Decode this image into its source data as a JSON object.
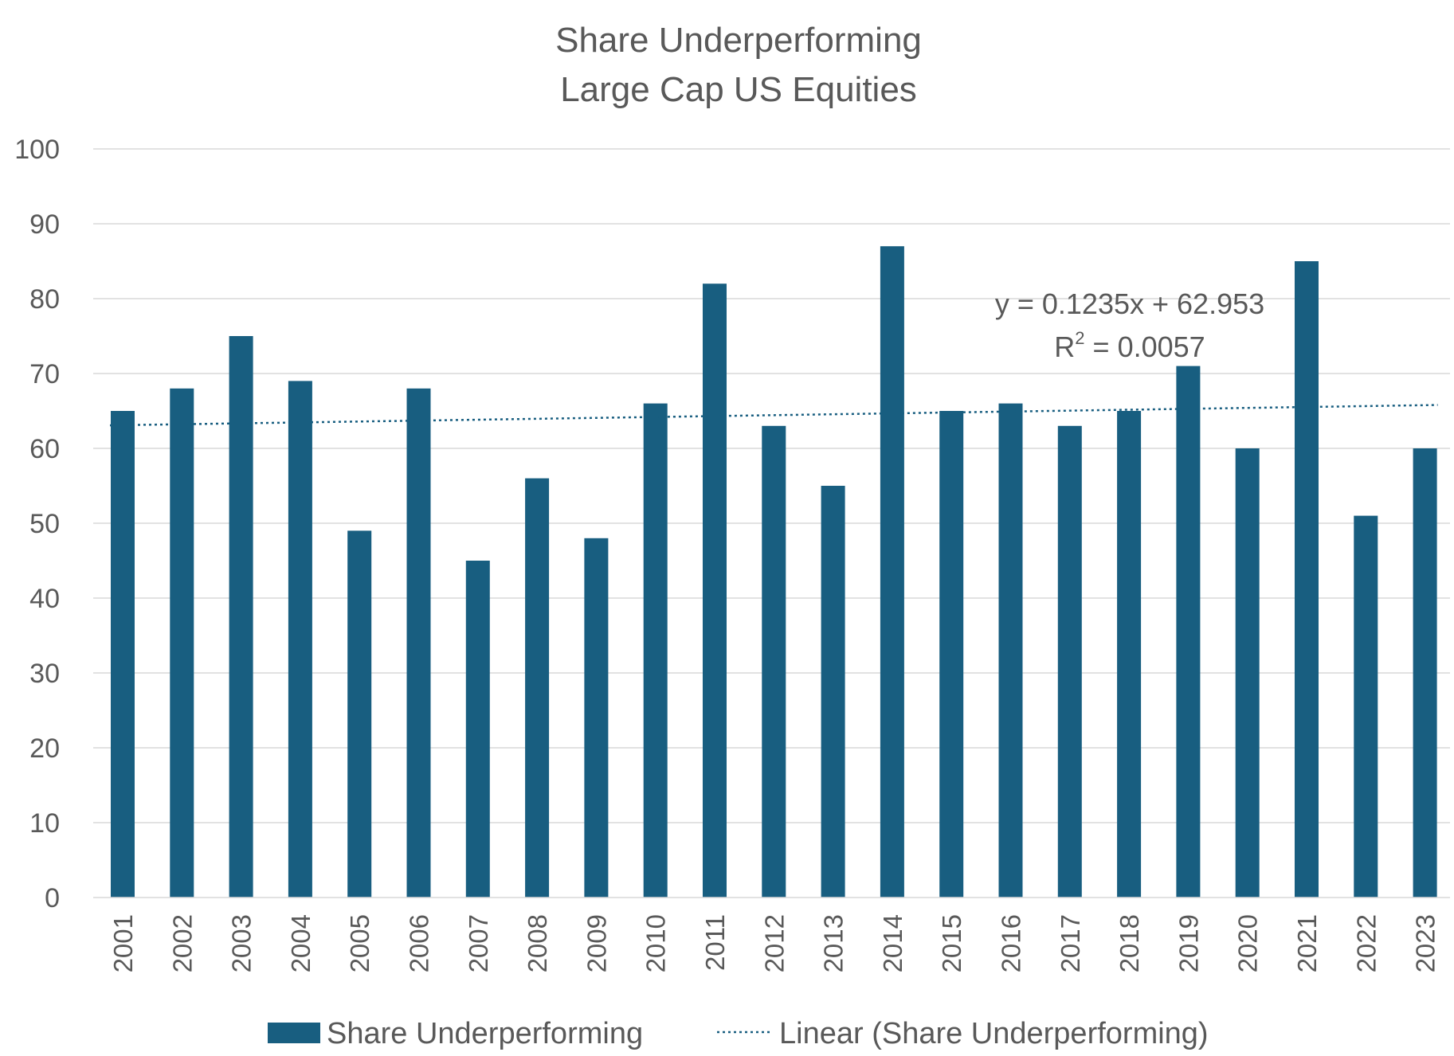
{
  "chart_data": {
    "type": "bar",
    "title_lines": [
      "Share Underperforming",
      "Large Cap US Equities"
    ],
    "xlabel": "",
    "ylabel": "",
    "categories": [
      "2001",
      "2002",
      "2003",
      "2004",
      "2005",
      "2006",
      "2007",
      "2008",
      "2009",
      "2010",
      "2011",
      "2012",
      "2013",
      "2014",
      "2015",
      "2016",
      "2017",
      "2018",
      "2019",
      "2020",
      "2021",
      "2022",
      "2023"
    ],
    "series": [
      {
        "name": "Share Underperforming",
        "color": "#185e80",
        "values": [
          65,
          68,
          75,
          69,
          49,
          68,
          45,
          56,
          48,
          66,
          82,
          63,
          55,
          87,
          65,
          66,
          63,
          65,
          71,
          60,
          85,
          51,
          60
        ]
      }
    ],
    "trendline": {
      "name": "Linear (Share Underperforming)",
      "style": "dotted",
      "color": "#185e80",
      "slope": 0.1235,
      "intercept": 62.953,
      "equation": "y = 0.1235x + 62.953",
      "r2_label": "R",
      "r2_sup": "2",
      "r2_value": " = 0.0057"
    },
    "ylim": [
      0,
      100
    ],
    "yticks": [
      "0",
      "10",
      "20",
      "30",
      "40",
      "50",
      "60",
      "70",
      "80",
      "90",
      "100"
    ],
    "grid": true,
    "legend_position": "bottom"
  }
}
